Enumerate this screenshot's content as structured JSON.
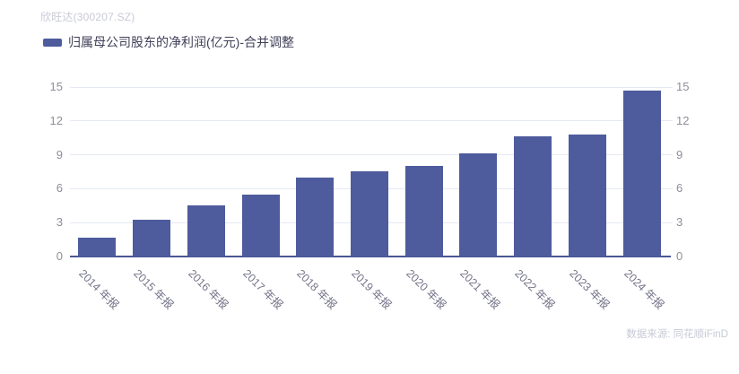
{
  "header": {
    "title": "欣旺达(300207.SZ)"
  },
  "legend": {
    "label": "归属母公司股东的净利润(亿元)-合并调整"
  },
  "footer": {
    "source": "数据来源: 同花顺iFinD"
  },
  "colors": {
    "bar": "#4e5b9c",
    "axis_line": "#4a5794",
    "gridline": "#e4e9f5",
    "y_tick_label": "#8e8e9a",
    "x_tick_label": "#75758a",
    "title": "#c8cad5",
    "legend_text": "#3f3f58",
    "source_text": "#c6cad6"
  },
  "chart_data": {
    "type": "bar",
    "title": "欣旺达(300207.SZ)",
    "series_name": "归属母公司股东的净利润(亿元)-合并调整",
    "categories": [
      "2014 年报",
      "2015 年报",
      "2016 年报",
      "2017 年报",
      "2018 年报",
      "2019 年报",
      "2020 年报",
      "2021 年报",
      "2022 年报",
      "2023 年报",
      "2024 年报"
    ],
    "values": [
      1.7,
      3.28,
      4.5,
      5.44,
      7.01,
      7.51,
      8.02,
      9.16,
      10.64,
      10.76,
      14.68
    ],
    "xlabel": "",
    "ylabel": "",
    "ylim": [
      0,
      15
    ],
    "yticks": [
      0,
      3,
      6,
      9,
      12,
      15
    ],
    "grid": true,
    "legend_position": "top-left",
    "bar_color": "#4e5b9c"
  }
}
